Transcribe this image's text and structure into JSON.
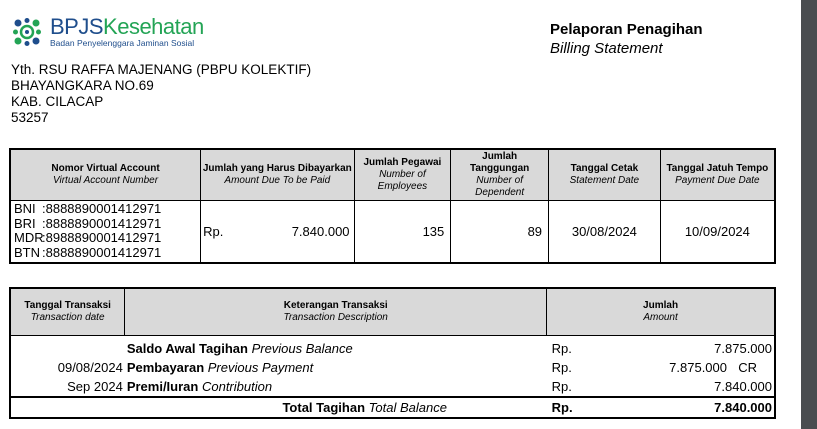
{
  "logo": {
    "brand_part1": "BPJS",
    "brand_part2": "Kesehatan",
    "subtitle": "Badan Penyelenggara Jaminan Sosial",
    "colors": {
      "blue": "#1f4e8c",
      "green": "#23a455"
    }
  },
  "header": {
    "title": "Pelaporan Penagihan",
    "subtitle": "Billing Statement"
  },
  "address": [
    "Yth. RSU RAFFA MAJENANG (PBPU KOLEKTIF)",
    "BHAYANGKARA NO.69",
    "KAB. CILACAP",
    "53257"
  ],
  "summary": {
    "headers": [
      {
        "bold": "Nomor Virtual Account",
        "italic": "Virtual Account Number"
      },
      {
        "bold": "Jumlah yang Harus Dibayarkan",
        "italic": "Amount Due To be Paid"
      },
      {
        "bold": "Jumlah Pegawai",
        "italic": "Number of Employees"
      },
      {
        "bold": "Jumlah Tanggungan",
        "italic": "Number of Dependent"
      },
      {
        "bold": "Tanggal Cetak",
        "italic": "Statement Date"
      },
      {
        "bold": "Tanggal Jatuh Tempo",
        "italic": "Payment Due Date"
      }
    ],
    "va": [
      {
        "bank": "BNI",
        "number": ":8888890001412971"
      },
      {
        "bank": "BRI",
        "number": ":8888890001412971"
      },
      {
        "bank": "MDR",
        "number": ":8988890001412971"
      },
      {
        "bank": "BTN",
        "number": ":8888890001412971"
      }
    ],
    "currency": "Rp.",
    "amount": "7.840.000",
    "employees": "135",
    "dependents": "89",
    "statement_date": "30/08/2024",
    "due_date": "10/09/2024"
  },
  "transactions": {
    "headers": [
      {
        "bold": "Tanggal Transaksi",
        "italic": "Transaction date"
      },
      {
        "bold": "Keterangan Transaksi",
        "italic": "Transaction Description"
      },
      {
        "bold": "Jumlah",
        "italic": "Amount"
      }
    ],
    "rows": [
      {
        "date": "",
        "desc_bold": "Saldo Awal Tagihan",
        "desc_italic": "Previous Balance",
        "currency": "Rp.",
        "amount": "7.875.000",
        "flag": ""
      },
      {
        "date": "09/08/2024",
        "desc_bold": "Pembayaran",
        "desc_italic": "Previous Payment",
        "currency": "Rp.",
        "amount": "7.875.000",
        "flag": "CR"
      },
      {
        "date": "Sep 2024",
        "desc_bold": "Premi/Iuran",
        "desc_italic": "Contribution",
        "currency": "Rp.",
        "amount": "7.840.000",
        "flag": ""
      }
    ],
    "total": {
      "bold": "Total Tagihan",
      "italic": "Total Balance",
      "currency": "Rp.",
      "amount": "7.840.000"
    }
  }
}
